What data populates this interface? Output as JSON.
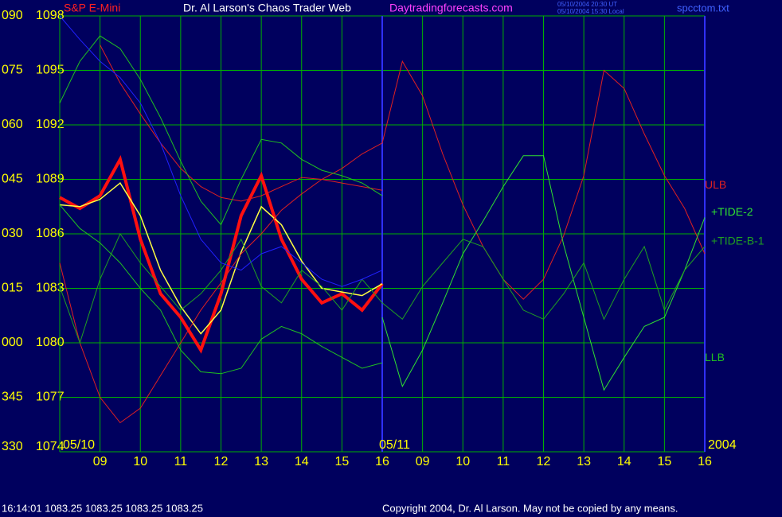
{
  "chart_data": {
    "type": "line",
    "title": "Dr. Al Larson's Chaos Trader Web",
    "site": "Daytradingforecasts.com",
    "instrument": "S&P E-Mini",
    "timestamps": [
      "05/10/2004 20:30 UT",
      "05/10/2004 15:30 Local"
    ],
    "file": "spcctom.txt",
    "status": "16:14:01  1083.25 1083.25 1083.25 1083.25",
    "copyright": "Copyright 2004, Dr. Al Larson. May not be copied by any means.",
    "date_labels": [
      "05/10",
      "05/11",
      "2004"
    ],
    "grid": true,
    "grid_color": "#00b000",
    "x": [
      0,
      0.5,
      1,
      1.5,
      2,
      2.5,
      3,
      3.5,
      4,
      4.5,
      5,
      5.5,
      6,
      6.5,
      7,
      7.5,
      8,
      8.5,
      9,
      9.5,
      10,
      10.5,
      11,
      11.5,
      12,
      12.5,
      13,
      13.5,
      14,
      14.5,
      15,
      15.5,
      16
    ],
    "xlim": [
      0,
      16
    ],
    "xticks": [
      {
        "value": 1,
        "label": "09"
      },
      {
        "value": 2,
        "label": "10"
      },
      {
        "value": 3,
        "label": "11"
      },
      {
        "value": 4,
        "label": "12"
      },
      {
        "value": 5,
        "label": "13"
      },
      {
        "value": 6,
        "label": "14"
      },
      {
        "value": 7,
        "label": "15"
      },
      {
        "value": 8,
        "label": "16"
      },
      {
        "value": 9,
        "label": "09"
      },
      {
        "value": 10,
        "label": "10"
      },
      {
        "value": 11,
        "label": "11"
      },
      {
        "value": 12,
        "label": "12"
      },
      {
        "value": 13,
        "label": "13"
      },
      {
        "value": 14,
        "label": "14"
      },
      {
        "value": 15,
        "label": "15"
      },
      {
        "value": 16,
        "label": "16"
      }
    ],
    "ylim": [
      1074,
      1098
    ],
    "yticks": [
      1074,
      1077,
      1080,
      1083,
      1086,
      1089,
      1092,
      1095,
      1098
    ],
    "y2lim": [
      330,
      450
    ],
    "y2ticks": [
      330,
      345,
      {
        "value": 360,
        "label": "000"
      },
      {
        "value": 375,
        "label": "015"
      },
      {
        "value": 390,
        "label": "030"
      },
      {
        "value": 405,
        "label": "045"
      },
      {
        "value": 420,
        "label": "060"
      },
      {
        "value": 435,
        "label": "075"
      },
      {
        "value": 450,
        "label": "090"
      }
    ],
    "series": [
      {
        "color": "#ff1010",
        "values": [
          1088.0,
          1087.4,
          1088.1,
          1090.1,
          1085.7,
          1082.7,
          1081.4,
          1079.6,
          1082.7,
          1087.0,
          1089.2,
          1085.7,
          1083.5,
          1082.2,
          1082.7,
          1081.8,
          1083.25,
          null,
          null,
          null,
          null,
          null,
          null,
          null,
          null,
          null,
          null,
          null,
          null,
          null,
          null,
          null,
          null
        ]
      },
      {
        "color": "#ffff40",
        "values": [
          1087.6,
          1087.5,
          1087.9,
          1088.8,
          1087.0,
          1084.0,
          1082.0,
          1080.5,
          1081.8,
          1085.0,
          1087.5,
          1086.5,
          1084.5,
          1083.0,
          1082.8,
          1082.6,
          1083.25,
          null,
          null,
          null,
          null,
          null,
          null,
          null,
          null,
          null,
          null,
          null,
          null,
          null,
          null,
          null,
          null
        ]
      },
      {
        "name": "ULB",
        "color": "#e02020",
        "values": [
          null,
          null,
          1096.4,
          1094.3,
          1092.6,
          1091.0,
          1089.6,
          1088.6,
          1088.0,
          1087.8,
          1088.1,
          1088.6,
          1089.1,
          1089.0,
          1088.8,
          1088.6,
          1088.4,
          null,
          null,
          null,
          null,
          null,
          null,
          null,
          null,
          null,
          null,
          null,
          null,
          null,
          null,
          null,
          null
        ]
      },
      {
        "color": "#e02020",
        "values": [
          1084.4,
          1080.0,
          1077.0,
          1075.6,
          1076.4,
          1078.2,
          1080.0,
          1081.8,
          1083.3,
          1084.9,
          1086.0,
          1087.3,
          1088.2,
          1089.0,
          1089.6,
          1090.4,
          1091.0,
          1095.5,
          1093.6,
          1090.4,
          1087.6,
          1085.3,
          1083.5,
          1082.4,
          1083.5,
          1085.9,
          1089.2,
          1095.0,
          1094.0,
          1091.5,
          1089.2,
          1087.4,
          1084.9
        ]
      },
      {
        "name": "LLB",
        "color": "#20c020",
        "values": [
          1087.6,
          1086.3,
          1085.5,
          1084.4,
          1083.0,
          1081.8,
          1079.6,
          1078.4,
          1078.3,
          1078.6,
          1080.2,
          1080.9,
          1080.5,
          1079.8,
          1079.2,
          1078.6,
          1078.9,
          null,
          null,
          null,
          null,
          null,
          null,
          null,
          null,
          null,
          null,
          null,
          null,
          null,
          null,
          null,
          null
        ]
      },
      {
        "color": "#20c020",
        "values": [
          1093.2,
          1095.5,
          1096.9,
          1096.2,
          1094.5,
          1092.4,
          1090.0,
          1087.8,
          1086.5,
          1089.0,
          1091.2,
          1091.0,
          1090.1,
          1089.5,
          1089.2,
          1088.8,
          1088.1,
          null,
          null,
          null,
          null,
          null,
          null,
          null,
          null,
          null,
          null,
          null,
          null,
          null,
          null,
          null,
          null
        ]
      },
      {
        "name": "+TIDE-2",
        "color": "#30e030",
        "values": [
          null,
          null,
          null,
          null,
          null,
          null,
          null,
          null,
          null,
          null,
          null,
          null,
          null,
          null,
          null,
          null,
          1081.4,
          1077.6,
          1079.6,
          1082.2,
          1084.9,
          1086.7,
          1088.6,
          1090.3,
          1090.3,
          1085.4,
          1081.4,
          1077.4,
          1079.2,
          1080.9,
          1081.4,
          1084.0,
          1086.9
        ]
      },
      {
        "name": "+TIDE-B-1",
        "color": "#20a020",
        "values": [
          1083.1,
          1080.0,
          1083.5,
          1086.0,
          1084.4,
          1083.1,
          1081.8,
          1082.7,
          1084.0,
          1085.7,
          1083.1,
          1082.2,
          1084.0,
          1083.1,
          1081.8,
          1083.5,
          1082.2,
          1081.3,
          1083.1,
          1084.4,
          1085.7,
          1085.3,
          1083.5,
          1081.8,
          1081.3,
          1082.7,
          1084.4,
          1081.3,
          1083.5,
          1085.3,
          1081.8,
          1084.0,
          1085.3
        ]
      },
      {
        "color": "#2020ff",
        "values": [
          1098.0,
          1096.7,
          1095.5,
          1094.6,
          1093.2,
          1091.0,
          1088.1,
          1085.7,
          1084.4,
          1084.0,
          1084.9,
          1085.3,
          1084.4,
          1083.5,
          1083.1,
          1083.5,
          1084.0,
          null,
          null,
          null,
          null,
          null,
          null,
          null,
          null,
          null,
          null,
          null,
          null,
          null,
          null,
          null,
          null
        ]
      }
    ]
  }
}
